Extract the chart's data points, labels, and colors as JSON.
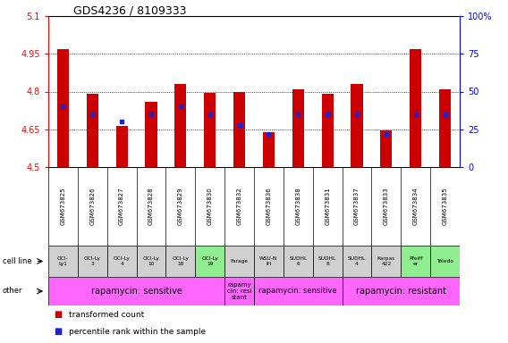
{
  "title": "GDS4236 / 8109333",
  "gsm_labels": [
    "GSM673825",
    "GSM673826",
    "GSM673827",
    "GSM673828",
    "GSM673829",
    "GSM673830",
    "GSM673832",
    "GSM673836",
    "GSM673838",
    "GSM673831",
    "GSM673837",
    "GSM673833",
    "GSM673834",
    "GSM673835"
  ],
  "transformed_counts": [
    4.97,
    4.79,
    4.665,
    4.76,
    4.83,
    4.795,
    4.8,
    4.64,
    4.81,
    4.79,
    4.83,
    4.645,
    4.97,
    4.81
  ],
  "percentile_ranks": [
    40,
    35,
    30,
    35,
    40,
    35,
    28,
    22,
    35,
    35,
    35,
    22,
    35,
    35
  ],
  "ylim": [
    4.5,
    5.1
  ],
  "y_ticks": [
    4.5,
    4.65,
    4.8,
    4.95,
    5.1
  ],
  "right_yticks": [
    0,
    25,
    50,
    75,
    100
  ],
  "bar_color": "#cc0000",
  "dot_color": "#2222cc",
  "cell_line_labels": [
    "OCI-\nLy1",
    "OCI-Ly\n3",
    "OCI-Ly\n4",
    "OCI-Ly\n10",
    "OCI-Ly\n18",
    "OCI-Ly\n19",
    "Farage",
    "WSU-N\nIH",
    "SUDHL\n6",
    "SUDHL\n8",
    "SUDHL\n4",
    "Karpas\n422",
    "Pfeiff\ner",
    "Toledo"
  ],
  "cell_line_bg": [
    "#d0d0d0",
    "#d0d0d0",
    "#d0d0d0",
    "#d0d0d0",
    "#d0d0d0",
    "#90ee90",
    "#d0d0d0",
    "#d0d0d0",
    "#d0d0d0",
    "#d0d0d0",
    "#d0d0d0",
    "#d0d0d0",
    "#90ee90",
    "#90ee90"
  ],
  "other_groups": [
    {
      "label": "rapamycin: sensitive",
      "start": 0,
      "end": 5,
      "color": "#ff66ff",
      "fontsize": 7
    },
    {
      "label": "rapamy\ncin: resi\nstant",
      "start": 6,
      "end": 6,
      "color": "#ff66ff",
      "fontsize": 5
    },
    {
      "label": "rapamycin: sensitive",
      "start": 7,
      "end": 9,
      "color": "#ff66ff",
      "fontsize": 6
    },
    {
      "label": "rapamycin: resistant",
      "start": 10,
      "end": 13,
      "color": "#ff66ff",
      "fontsize": 7
    }
  ],
  "gsm_bg_color": "#c8c8c8",
  "background_color": "#ffffff",
  "n": 14
}
